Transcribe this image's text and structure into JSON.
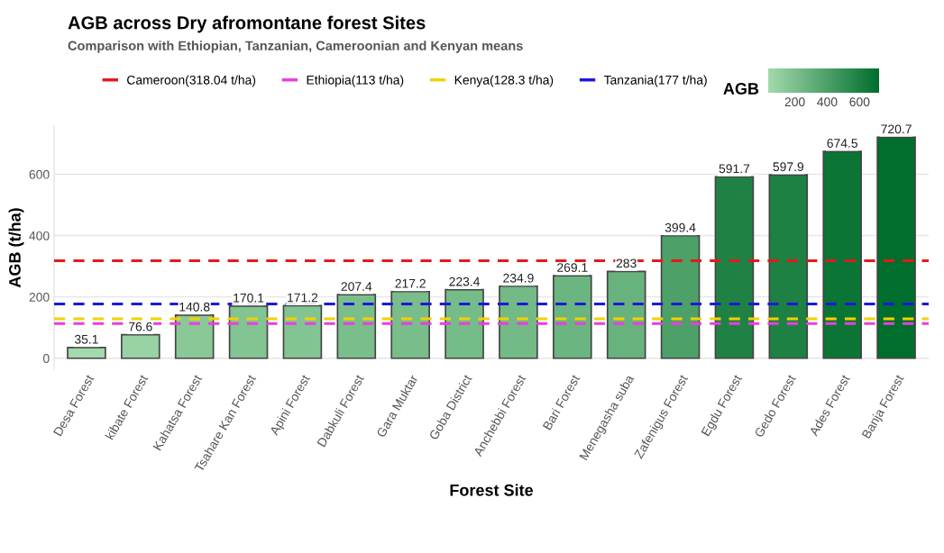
{
  "chart_data": {
    "type": "bar",
    "title": "AGB across Dry afromontane forest Sites",
    "subtitle": "Comparison with Ethiopian, Tanzanian, Cameroonian and Kenyan means",
    "xlabel": "Forest Site",
    "ylabel": "AGB (t/ha)",
    "clabel": "AGB",
    "categories": [
      "Desa Forest",
      "kibate Forest",
      "Kahatsa Forest",
      "Tsahare Kan Forest",
      "Apini Forest",
      "Dabkuli Forest",
      "Gara Muktar",
      "Goba District",
      "Anchebbi Forest",
      "Bari Forest",
      "Menegasha suba",
      "Zafenigus Forest",
      "Egdu Forest",
      "Gedo Forest",
      "Ades Forest",
      "Banja Forest"
    ],
    "values": [
      35.1,
      76.6,
      140.8,
      170.1,
      171.2,
      207.4,
      217.2,
      223.4,
      234.9,
      269.1,
      283,
      399.4,
      591.7,
      597.9,
      674.5,
      720.7
    ],
    "colors": [
      "#a3d9ac",
      "#99d2a4",
      "#8ac898",
      "#83c493",
      "#83c493",
      "#7abe8c",
      "#78bd8a",
      "#76bc89",
      "#74ba87",
      "#6bb580",
      "#68b27e",
      "#4ca068",
      "#1f8244",
      "#1d8143",
      "#0b7535",
      "#006e2c"
    ],
    "data_labels": true,
    "ylim": [
      -36,
      757
    ],
    "yticks": [
      0,
      200,
      400,
      600
    ],
    "clim": [
      35.1,
      720.7
    ],
    "cticks": [
      200,
      400,
      600
    ],
    "ref_lines": [
      {
        "axis": "y",
        "value": 318.04,
        "label": "Cameroon(318.04 t/ha)",
        "color": "#e31a1c",
        "line_style": "dashed"
      },
      {
        "axis": "y",
        "value": 113,
        "label": "Ethiopia(113 t/ha)",
        "color": "#e83fe0",
        "line_style": "dashed"
      },
      {
        "axis": "y",
        "value": 128.3,
        "label": "Kenya(128.3 t/ha)",
        "color": "#f2d200",
        "line_style": "dashed"
      },
      {
        "axis": "y",
        "value": 177,
        "label": "Tanzania(177 t/ha)",
        "color": "#1a1adb",
        "line_style": "dashed"
      }
    ],
    "grid": "y",
    "legend": "top"
  }
}
